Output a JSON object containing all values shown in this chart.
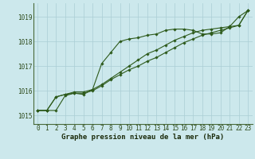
{
  "x": [
    0,
    1,
    2,
    3,
    4,
    5,
    6,
    7,
    8,
    9,
    10,
    11,
    12,
    13,
    14,
    15,
    16,
    17,
    18,
    19,
    20,
    21,
    22,
    23
  ],
  "line1": [
    1015.2,
    1015.2,
    1015.2,
    1015.8,
    1015.9,
    1015.85,
    1016.05,
    1017.1,
    1017.55,
    1018.0,
    1018.1,
    1018.15,
    1018.25,
    1018.3,
    1018.45,
    1018.5,
    1018.5,
    1018.45,
    1018.3,
    1018.3,
    1018.35,
    1018.6,
    1019.0,
    1019.25
  ],
  "line2": [
    1015.2,
    1015.2,
    1015.75,
    1015.85,
    1015.95,
    1015.95,
    1016.05,
    1016.25,
    1016.5,
    1016.75,
    1017.0,
    1017.25,
    1017.5,
    1017.65,
    1017.85,
    1018.05,
    1018.2,
    1018.35,
    1018.45,
    1018.5,
    1018.55,
    1018.6,
    1018.65,
    1019.25
  ],
  "line3": [
    1015.2,
    1015.2,
    1015.75,
    1015.85,
    1015.9,
    1015.9,
    1016.0,
    1016.2,
    1016.45,
    1016.65,
    1016.85,
    1017.0,
    1017.2,
    1017.35,
    1017.55,
    1017.75,
    1017.95,
    1018.1,
    1018.25,
    1018.35,
    1018.45,
    1018.55,
    1018.65,
    1019.25
  ],
  "bg_color": "#cce8ec",
  "line_color": "#2d5a1b",
  "grid_color": "#aacdd4",
  "xlabel": "Graphe pression niveau de la mer (hPa)",
  "ylabel_ticks": [
    1015,
    1016,
    1017,
    1018,
    1019
  ],
  "ylim": [
    1014.65,
    1019.55
  ],
  "xlim": [
    -0.5,
    23.5
  ],
  "tick_color": "#2d4a1a",
  "xlabel_color": "#1a2a0a",
  "label_fontsize": 6.5,
  "tick_fontsize": 5.5,
  "marker": "D",
  "marker_size": 1.8,
  "line_width": 0.8
}
